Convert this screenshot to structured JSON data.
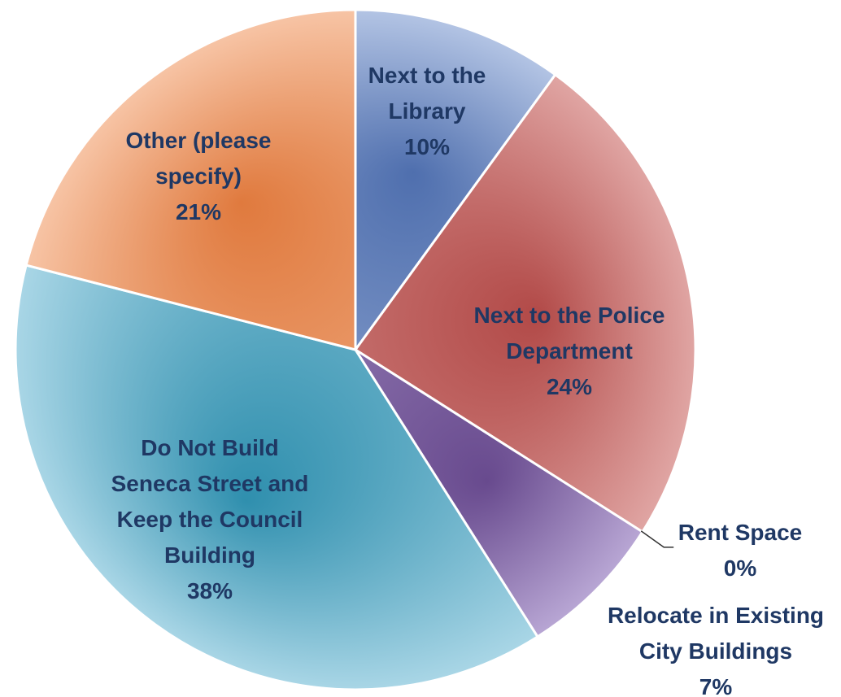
{
  "chart_data": {
    "type": "pie",
    "slices": [
      {
        "id": "library",
        "label_lines": [
          "Next to the",
          "Library"
        ],
        "value": 10,
        "value_text": "10%",
        "color": "#4f6fae",
        "color_light": "#b3c4e4"
      },
      {
        "id": "police",
        "label_lines": [
          "Next to the Police",
          "Department"
        ],
        "value": 24,
        "value_text": "24%",
        "color": "#b24a48",
        "color_light": "#e0a5a3"
      },
      {
        "id": "rent",
        "label_lines": [
          "Rent Space"
        ],
        "value": 0,
        "value_text": "0%",
        "color": "#8f86b8",
        "color_light": "#c8c0e2"
      },
      {
        "id": "relocate",
        "label_lines": [
          "Relocate in Existing",
          "City Buildings"
        ],
        "value": 7,
        "value_text": "7%",
        "color": "#684a8e",
        "color_light": "#b8a6d4"
      },
      {
        "id": "do-not-build",
        "label_lines": [
          "Do Not Build",
          "Seneca Street and",
          "Keep the Council",
          "Building"
        ],
        "value": 38,
        "value_text": "38%",
        "color": "#2f8fae",
        "color_light": "#a9d6e6"
      },
      {
        "id": "other",
        "label_lines": [
          "Other (please",
          "specify)"
        ],
        "value": 21,
        "value_text": "21%",
        "color": "#e07a3e",
        "color_light": "#f7c4a5"
      }
    ],
    "legend": "none",
    "label_color": "#1f3864"
  }
}
